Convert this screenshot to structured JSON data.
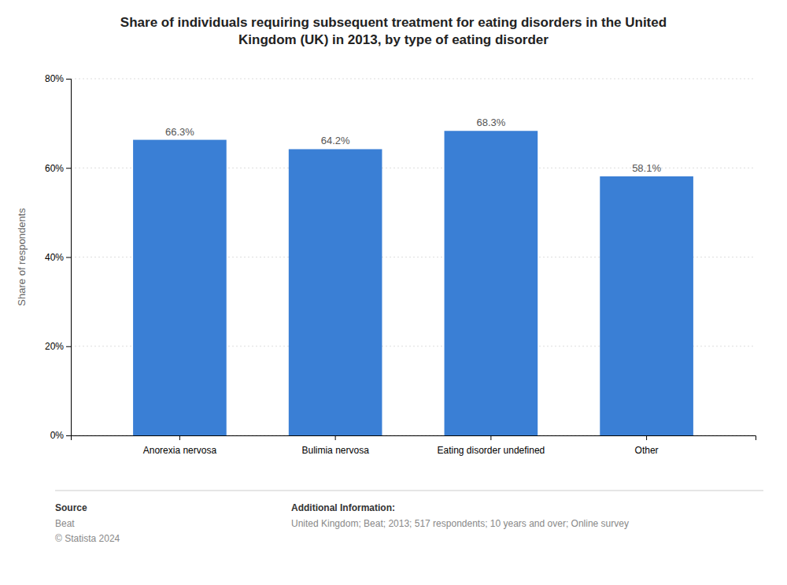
{
  "chart_data": {
    "type": "bar",
    "title": "Share of individuals requiring subsequent treatment for eating disorders in the United\nKingdom (UK) in 2013, by type of eating disorder",
    "categories": [
      "Anorexia nervosa",
      "Bulimia nervosa",
      "Eating disorder undefined",
      "Other"
    ],
    "values": [
      66.3,
      64.2,
      68.3,
      58.1
    ],
    "value_labels": [
      "66.3%",
      "64.2%",
      "68.3%",
      "58.1%"
    ],
    "data_labels": true,
    "color": "#3a7fd5",
    "ylabel": "Share of respondents",
    "ylim": [
      0,
      80
    ],
    "yticks": [
      {
        "value": 0,
        "label": "0%"
      },
      {
        "value": 20,
        "label": "20%"
      },
      {
        "value": 40,
        "label": "40%"
      },
      {
        "value": 60,
        "label": "60%"
      },
      {
        "value": 80,
        "label": "80%"
      }
    ],
    "grid": true,
    "annotations": [
      "Source",
      "Beat\n© Statista 2024",
      "Additional Information:",
      "United Kingdom; Beat; 2013; 517 respondents; 10 years and over; Online survey"
    ]
  }
}
